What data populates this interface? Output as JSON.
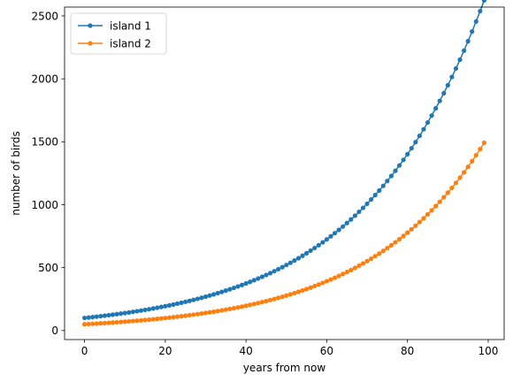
{
  "chart_data": {
    "type": "line",
    "title": "",
    "xlabel": "years from now",
    "ylabel": "number of birds",
    "xlim": [
      -4.95,
      103.95
    ],
    "ylim": [
      -71.6,
      2570.1
    ],
    "xticks": [
      0,
      20,
      40,
      60,
      80,
      100
    ],
    "yticks": [
      0,
      500,
      1000,
      1500,
      2000,
      2500
    ],
    "xtick_labels": [
      "0",
      "20",
      "40",
      "60",
      "80",
      "100"
    ],
    "ytick_labels": [
      "0",
      "500",
      "1000",
      "1500",
      "2000",
      "2500"
    ],
    "grid": false,
    "legend_position": "top-left",
    "x": {
      "start": 0,
      "end": 99,
      "step": 1
    },
    "series": [
      {
        "name": "island 1",
        "color": "#1f77b4",
        "marker": "circle",
        "start_value": 100,
        "growth_rate": 0.033
      },
      {
        "name": "island 2",
        "color": "#ff7f0e",
        "marker": "circle",
        "start_value": 50,
        "growth_rate": 0.0343
      }
    ]
  }
}
